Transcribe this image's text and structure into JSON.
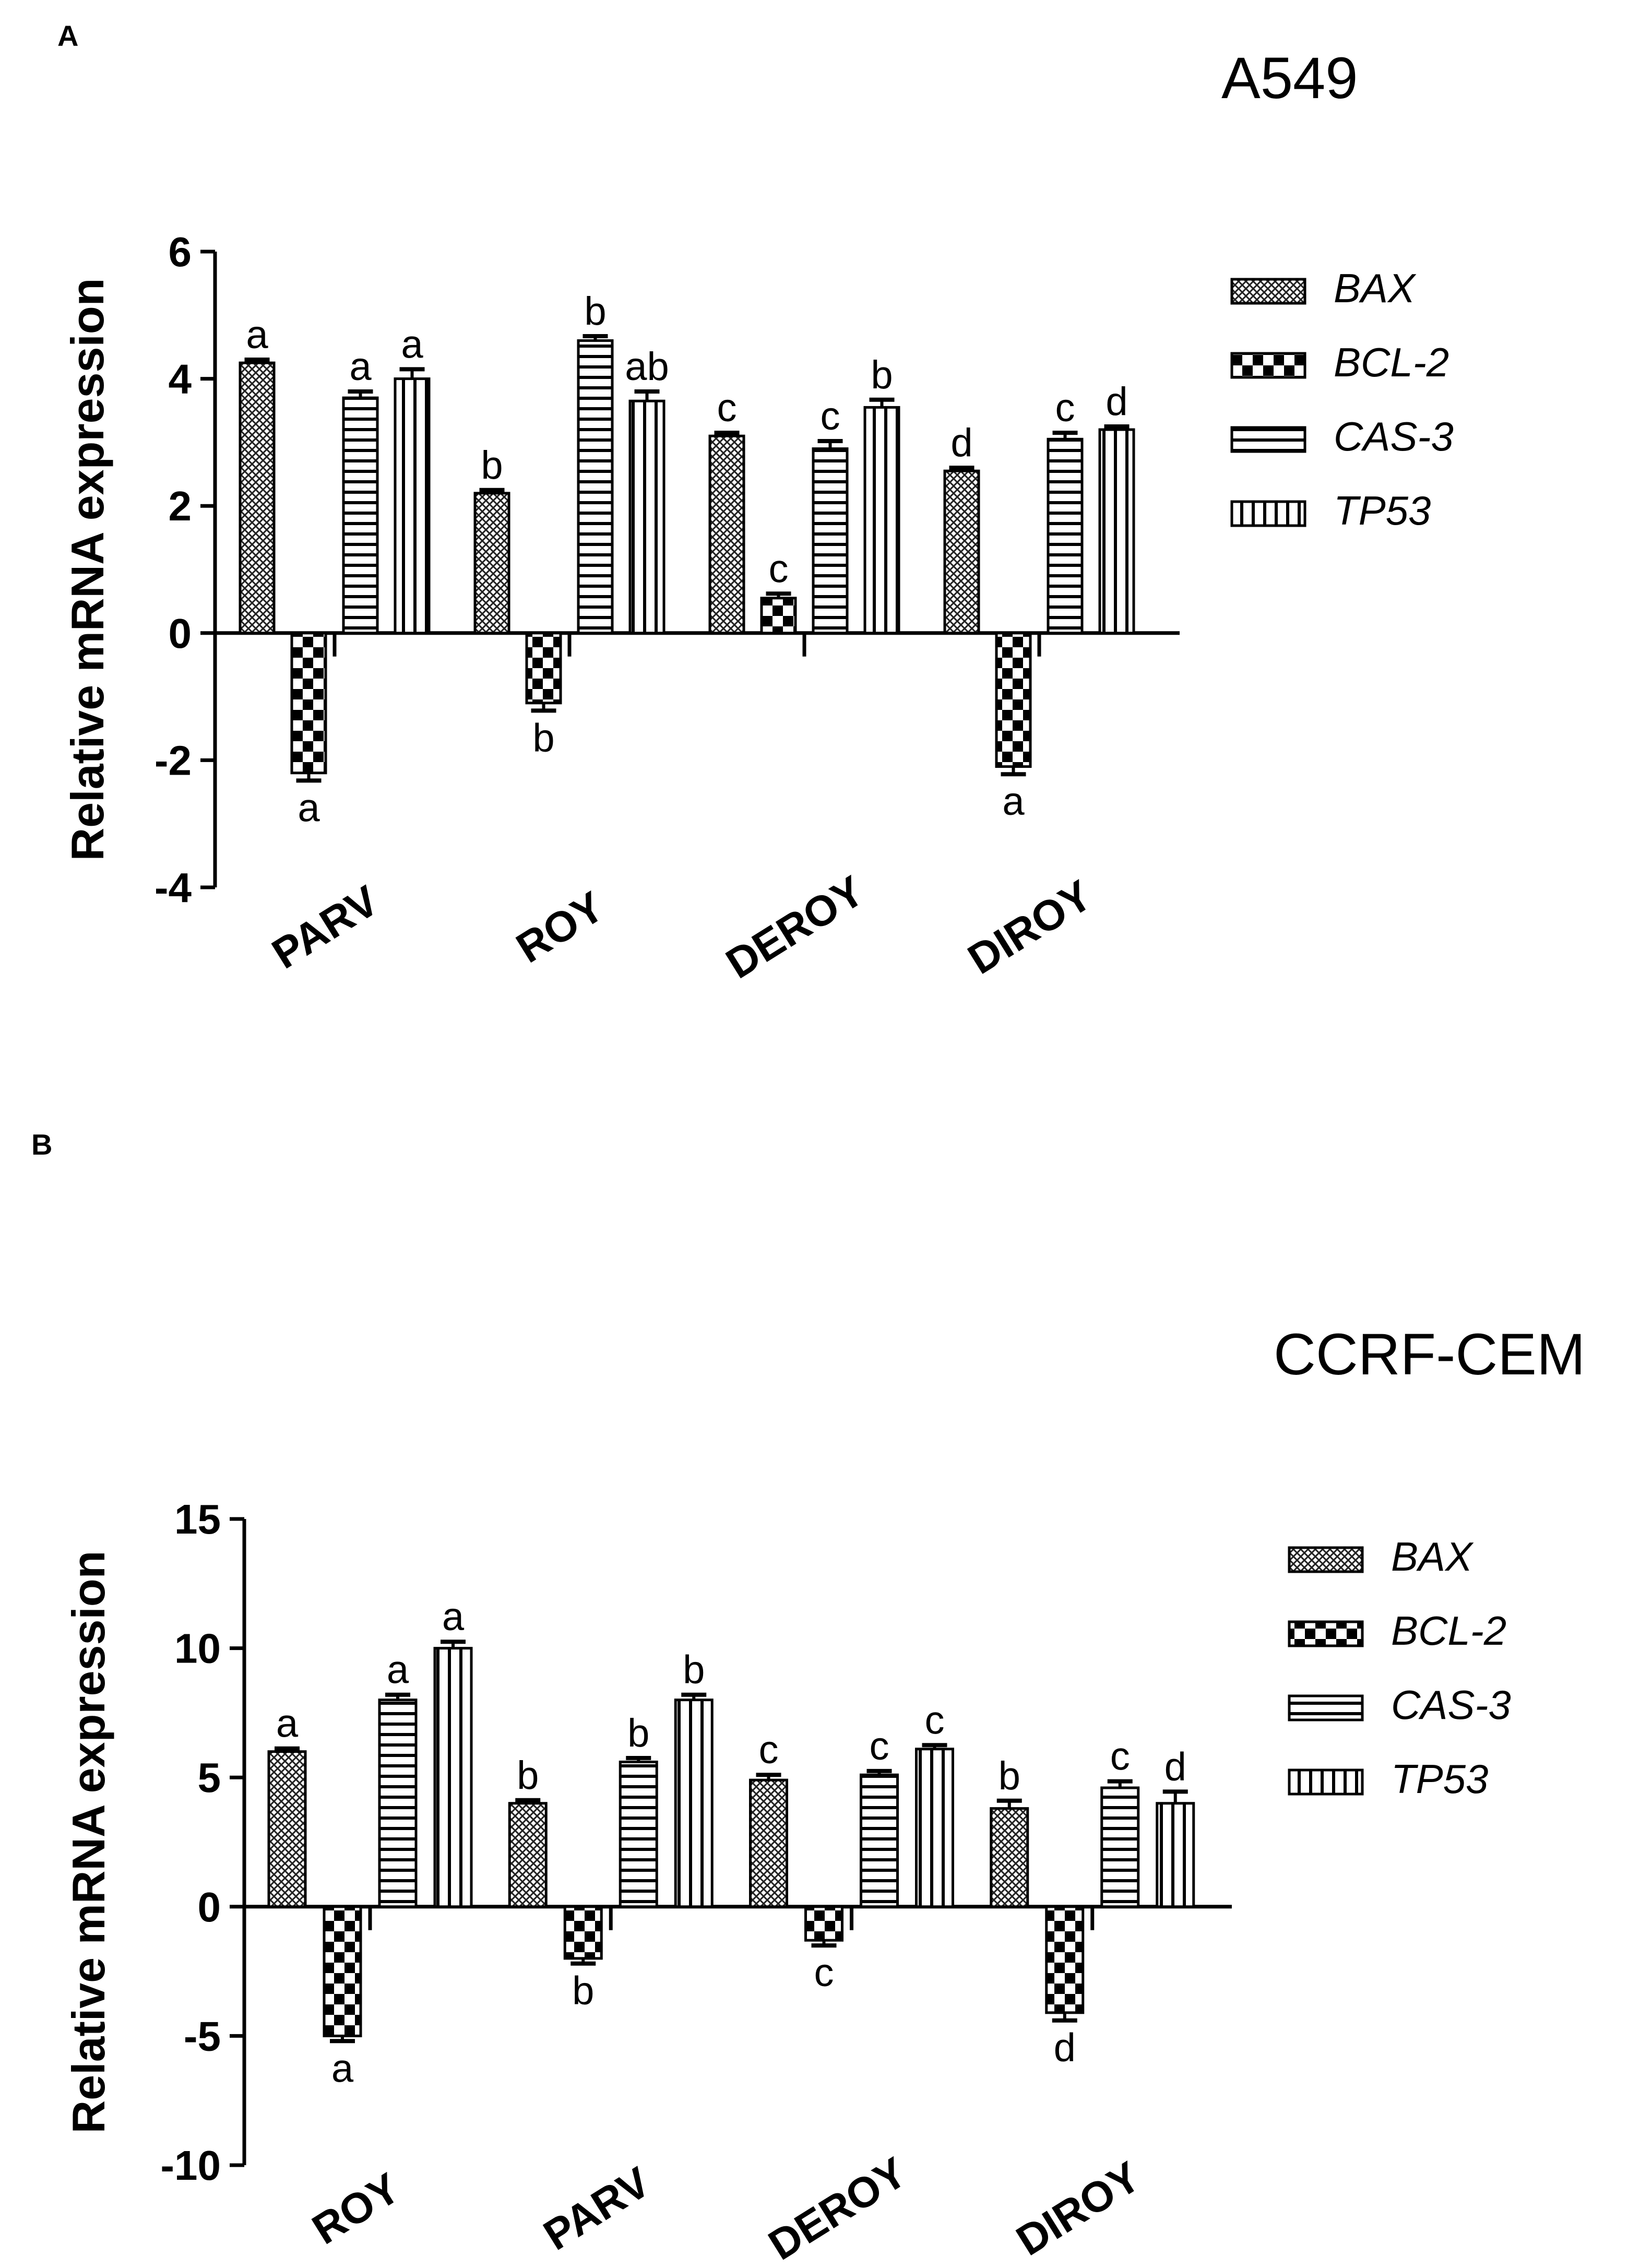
{
  "panels": [
    {
      "letter": "A",
      "title": "A549",
      "ylabel": "Relative mRNA expression",
      "ylim": [
        -4,
        6
      ],
      "yticks": [
        "6",
        "4",
        "2",
        "0",
        "-2",
        "-4"
      ],
      "categories": [
        "PARV",
        "ROY",
        "DEROY",
        "DIROY"
      ],
      "legend": [
        "BAX",
        "BCL-2",
        "CAS-3",
        "TP53"
      ],
      "chart_data": {
        "type": "bar",
        "categories": [
          "PARV",
          "ROY",
          "DEROY",
          "DIROY"
        ],
        "series": [
          {
            "name": "BAX",
            "values": [
              4.25,
              2.2,
              3.1,
              2.55
            ],
            "errors": [
              0.05,
              0.05,
              0.05,
              0.05
            ],
            "letters": [
              "a",
              "b",
              "c",
              "d"
            ]
          },
          {
            "name": "BCL-2",
            "values": [
              -2.2,
              -1.1,
              0.55,
              -2.1
            ],
            "errors": [
              0.12,
              0.12,
              0.07,
              0.12
            ],
            "letters": [
              "a",
              "b",
              "c",
              "a"
            ]
          },
          {
            "name": "CAS-3",
            "values": [
              3.7,
              4.6,
              2.9,
              3.05
            ],
            "errors": [
              0.1,
              0.07,
              0.12,
              0.1
            ],
            "letters": [
              "a",
              "b",
              "c",
              "c"
            ]
          },
          {
            "name": "TP53",
            "values": [
              4.0,
              3.65,
              3.55,
              3.2
            ],
            "errors": [
              0.15,
              0.15,
              0.12,
              0.05
            ],
            "letters": [
              "a",
              "ab",
              "b",
              "d"
            ]
          }
        ],
        "ylabel": "Relative mRNA expression",
        "ylim": [
          -4,
          6
        ],
        "legend_position": "right"
      }
    },
    {
      "letter": "B",
      "title": "CCRF-CEM",
      "ylabel": "Relative mRNA expression",
      "ylim": [
        -10,
        15
      ],
      "yticks": [
        "15",
        "10",
        "5",
        "0",
        "-5",
        "-10"
      ],
      "categories": [
        "ROY",
        "PARV",
        "DEROY",
        "DIROY"
      ],
      "legend": [
        "BAX",
        "BCL-2",
        "CAS-3",
        "TP53"
      ],
      "chart_data": {
        "type": "bar",
        "categories": [
          "ROY",
          "PARV",
          "DEROY",
          "DIROY"
        ],
        "series": [
          {
            "name": "BAX",
            "values": [
              6.0,
              4.0,
              4.9,
              3.8
            ],
            "errors": [
              0.12,
              0.12,
              0.2,
              0.3
            ],
            "letters": [
              "a",
              "b",
              "c",
              "b"
            ]
          },
          {
            "name": "BCL-2",
            "values": [
              -5.0,
              -2.0,
              -1.3,
              -4.1
            ],
            "errors": [
              0.2,
              0.2,
              0.2,
              0.3
            ],
            "letters": [
              "a",
              "b",
              "c",
              "d"
            ]
          },
          {
            "name": "CAS-3",
            "values": [
              8.0,
              5.6,
              5.1,
              4.6
            ],
            "errors": [
              0.2,
              0.15,
              0.15,
              0.25
            ],
            "letters": [
              "a",
              "b",
              "c",
              "c"
            ]
          },
          {
            "name": "TP53",
            "values": [
              10.0,
              8.0,
              6.1,
              4.0
            ],
            "errors": [
              0.25,
              0.2,
              0.15,
              0.45
            ],
            "letters": [
              "a",
              "b",
              "c",
              "d"
            ]
          }
        ],
        "ylabel": "Relative mRNA expression",
        "ylim": [
          -10,
          15
        ],
        "legend_position": "right"
      }
    }
  ]
}
